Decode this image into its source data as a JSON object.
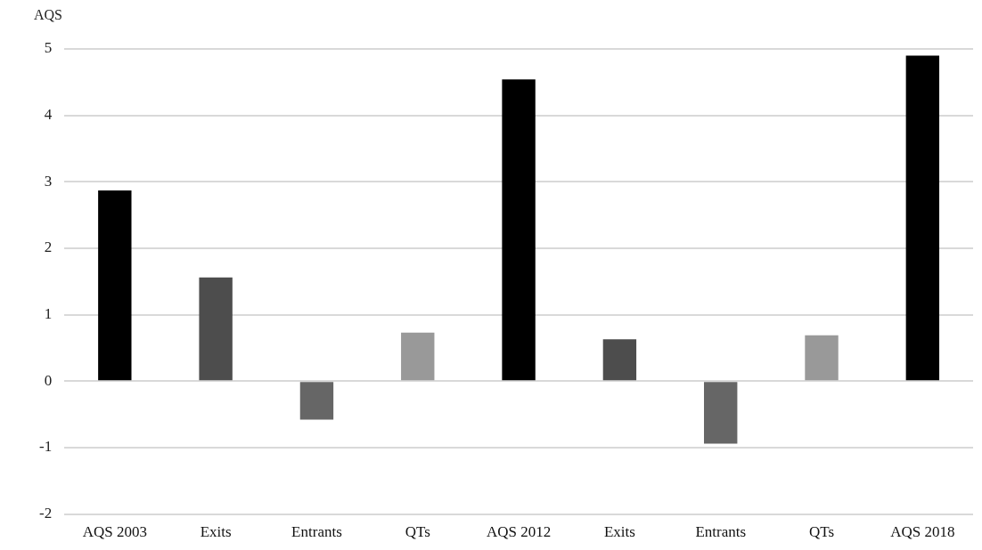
{
  "chart_data": {
    "type": "bar",
    "ylabel": "AQS",
    "categories": [
      "AQS 2003",
      "Exits",
      "Entrants",
      "QTs",
      "AQS 2012",
      "Exits",
      "Entrants",
      "QTs",
      "AQS 2018"
    ],
    "values": [
      2.87,
      1.56,
      -0.58,
      0.73,
      4.54,
      0.63,
      -0.94,
      0.69,
      4.9
    ],
    "colors": [
      "#000000",
      "#4d4d4d",
      "#666666",
      "#999999",
      "#000000",
      "#4d4d4d",
      "#666666",
      "#999999",
      "#000000"
    ],
    "ylim": [
      -2,
      5
    ],
    "yticks": [
      -2,
      -1,
      0,
      1,
      2,
      3,
      4,
      5
    ],
    "grid": "y",
    "legend": false
  }
}
